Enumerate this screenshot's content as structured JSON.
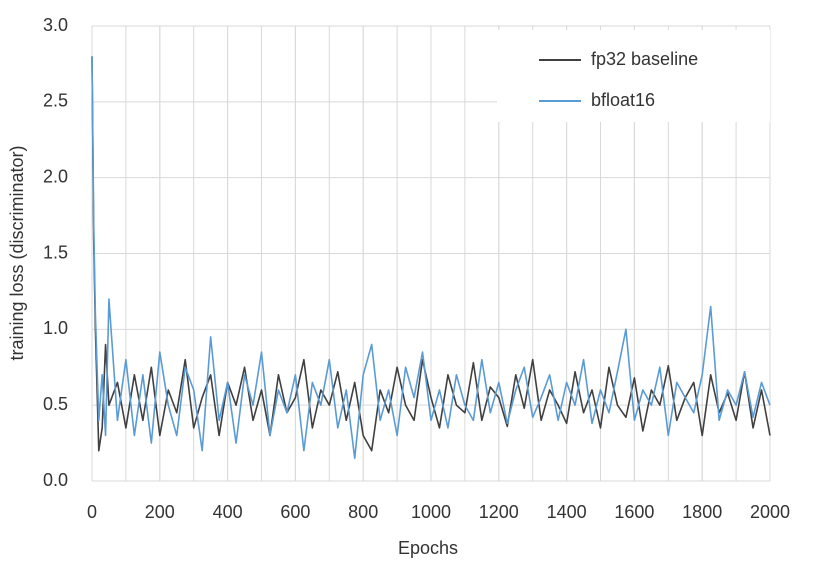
{
  "chart_data": {
    "type": "line",
    "x_label": "Epochs",
    "y_label": "training loss (discriminator)",
    "x": [
      0,
      5,
      10,
      20,
      30,
      40,
      50,
      75,
      100,
      125,
      150,
      175,
      200,
      225,
      250,
      275,
      300,
      325,
      350,
      375,
      400,
      425,
      450,
      475,
      500,
      525,
      550,
      575,
      600,
      625,
      650,
      675,
      700,
      725,
      750,
      775,
      800,
      825,
      850,
      875,
      900,
      925,
      950,
      975,
      1000,
      1025,
      1050,
      1075,
      1100,
      1125,
      1150,
      1175,
      1200,
      1225,
      1250,
      1275,
      1300,
      1325,
      1350,
      1375,
      1400,
      1425,
      1450,
      1475,
      1500,
      1525,
      1550,
      1575,
      1600,
      1625,
      1650,
      1675,
      1700,
      1725,
      1750,
      1775,
      1800,
      1825,
      1850,
      1875,
      1900,
      1925,
      1950,
      1975,
      2000
    ],
    "series": [
      {
        "name": "fp32 baseline",
        "color": "#404040",
        "values": [
          2.8,
          1.6,
          1.0,
          0.2,
          0.35,
          0.9,
          0.5,
          0.65,
          0.35,
          0.7,
          0.4,
          0.75,
          0.3,
          0.6,
          0.45,
          0.8,
          0.35,
          0.55,
          0.7,
          0.3,
          0.65,
          0.5,
          0.75,
          0.4,
          0.6,
          0.3,
          0.7,
          0.45,
          0.55,
          0.8,
          0.35,
          0.6,
          0.5,
          0.72,
          0.4,
          0.65,
          0.3,
          0.2,
          0.6,
          0.45,
          0.75,
          0.5,
          0.4,
          0.8,
          0.55,
          0.35,
          0.7,
          0.5,
          0.45,
          0.78,
          0.4,
          0.62,
          0.55,
          0.36,
          0.7,
          0.48,
          0.8,
          0.4,
          0.6,
          0.5,
          0.38,
          0.72,
          0.45,
          0.6,
          0.35,
          0.75,
          0.5,
          0.42,
          0.68,
          0.33,
          0.6,
          0.5,
          0.76,
          0.4,
          0.55,
          0.65,
          0.3,
          0.7,
          0.45,
          0.58,
          0.4,
          0.72,
          0.35,
          0.6,
          0.3
        ]
      },
      {
        "name": "bfloat16",
        "color": "#5b9bd5",
        "values": [
          2.8,
          1.7,
          1.1,
          0.4,
          0.7,
          0.3,
          1.2,
          0.4,
          0.8,
          0.3,
          0.7,
          0.25,
          0.85,
          0.5,
          0.3,
          0.75,
          0.6,
          0.2,
          0.95,
          0.4,
          0.65,
          0.25,
          0.7,
          0.5,
          0.85,
          0.3,
          0.6,
          0.45,
          0.7,
          0.2,
          0.65,
          0.5,
          0.8,
          0.35,
          0.6,
          0.15,
          0.7,
          0.9,
          0.4,
          0.6,
          0.3,
          0.75,
          0.55,
          0.85,
          0.4,
          0.6,
          0.35,
          0.7,
          0.5,
          0.4,
          0.8,
          0.45,
          0.65,
          0.38,
          0.6,
          0.75,
          0.42,
          0.55,
          0.7,
          0.4,
          0.65,
          0.5,
          0.8,
          0.38,
          0.6,
          0.45,
          0.72,
          1.0,
          0.4,
          0.6,
          0.5,
          0.75,
          0.3,
          0.65,
          0.55,
          0.45,
          0.7,
          1.15,
          0.4,
          0.6,
          0.5,
          0.72,
          0.42,
          0.65,
          0.5
        ]
      }
    ],
    "xlim": [
      0,
      2000
    ],
    "xticks": [
      0,
      200,
      400,
      600,
      800,
      1000,
      1200,
      1400,
      1600,
      1800,
      2000
    ],
    "xgrid_step": 100,
    "ylim": [
      0,
      3
    ],
    "yticks": [
      {
        "value": 0,
        "label": "0.0"
      },
      0.5,
      {
        "value": 1,
        "label": "1.0"
      },
      1.5,
      {
        "value": 2,
        "label": "2.0"
      },
      2.5,
      {
        "value": 3,
        "label": "3.0"
      }
    ],
    "grid": true,
    "legend": "upper right"
  }
}
